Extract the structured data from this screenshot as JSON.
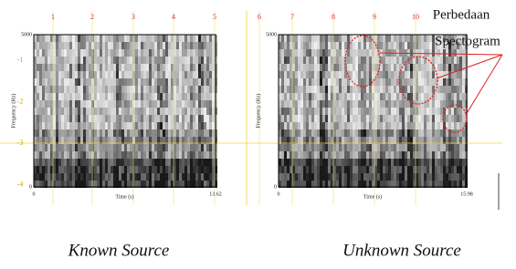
{
  "figure": {
    "left_marks": [
      "-1",
      "-2",
      "-3",
      "-4"
    ],
    "annotation": [
      "Perbedaan",
      "Spectogram"
    ],
    "panels": [
      {
        "top_marks": [
          "1",
          "2",
          "3",
          "4",
          "5"
        ],
        "y_max": "5000",
        "y_min": "0",
        "x_start": "0",
        "x_end": "13.62",
        "x_label": "Time (s)",
        "y_label": "Frequency (Hz)",
        "caption": "Known Source"
      },
      {
        "top_marks": [
          "6",
          "7",
          "8",
          "9",
          "10"
        ],
        "y_max": "5000",
        "y_min": "0",
        "x_start": "0",
        "x_end": "15.98",
        "x_label": "Time (s)",
        "y_label": "Frequency (Hz)",
        "caption": "Unknown Source"
      }
    ]
  }
}
